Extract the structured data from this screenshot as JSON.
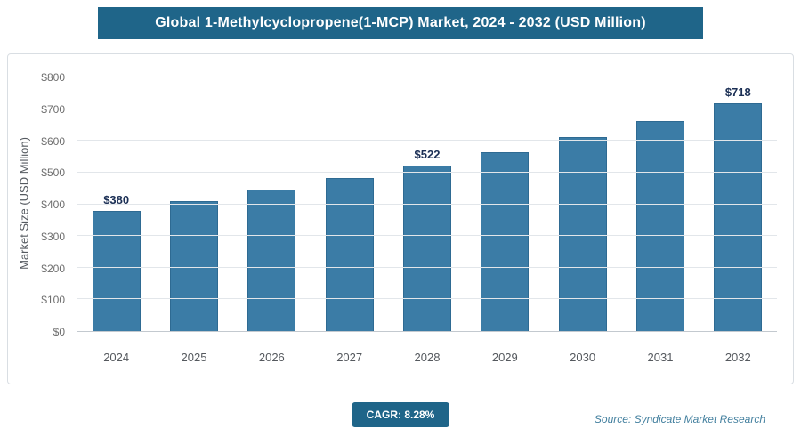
{
  "header": {
    "title": "Global 1-Methylcyclopropene(1-MCP) Market, 2024 - 2032 (USD Million)"
  },
  "chart_data": {
    "type": "bar",
    "title": "Global 1-Methylcyclopropene(1-MCP) Market, 2024 - 2032 (USD Million)",
    "categories": [
      "2024",
      "2025",
      "2026",
      "2027",
      "2028",
      "2029",
      "2030",
      "2031",
      "2032"
    ],
    "values": [
      380,
      411,
      445,
      482,
      522,
      565,
      612,
      663,
      718
    ],
    "data_labels": [
      "$380",
      "",
      "",
      "",
      "$522",
      "",
      "",
      "",
      "$718"
    ],
    "xlabel": "",
    "ylabel": "Market Size (USD Million)",
    "ylim": [
      0,
      800
    ],
    "ytick_step": 100,
    "ytick_labels": [
      "$0",
      "$100",
      "$200",
      "$300",
      "$400",
      "$500",
      "$600",
      "$700",
      "$800"
    ],
    "grid": true,
    "legend": "none"
  },
  "footer": {
    "cagr_label": "CAGR: 8.28%",
    "source": "Source: Syndicate Market Research"
  },
  "colors": {
    "header_bg": "#1f6589",
    "bar": "#3b7ca6",
    "bar_border": "#2e6a92",
    "value_label": "#1b2f55",
    "axis_text": "#6d6d6d",
    "grid": "#e2e6ea",
    "source": "#44809f"
  }
}
